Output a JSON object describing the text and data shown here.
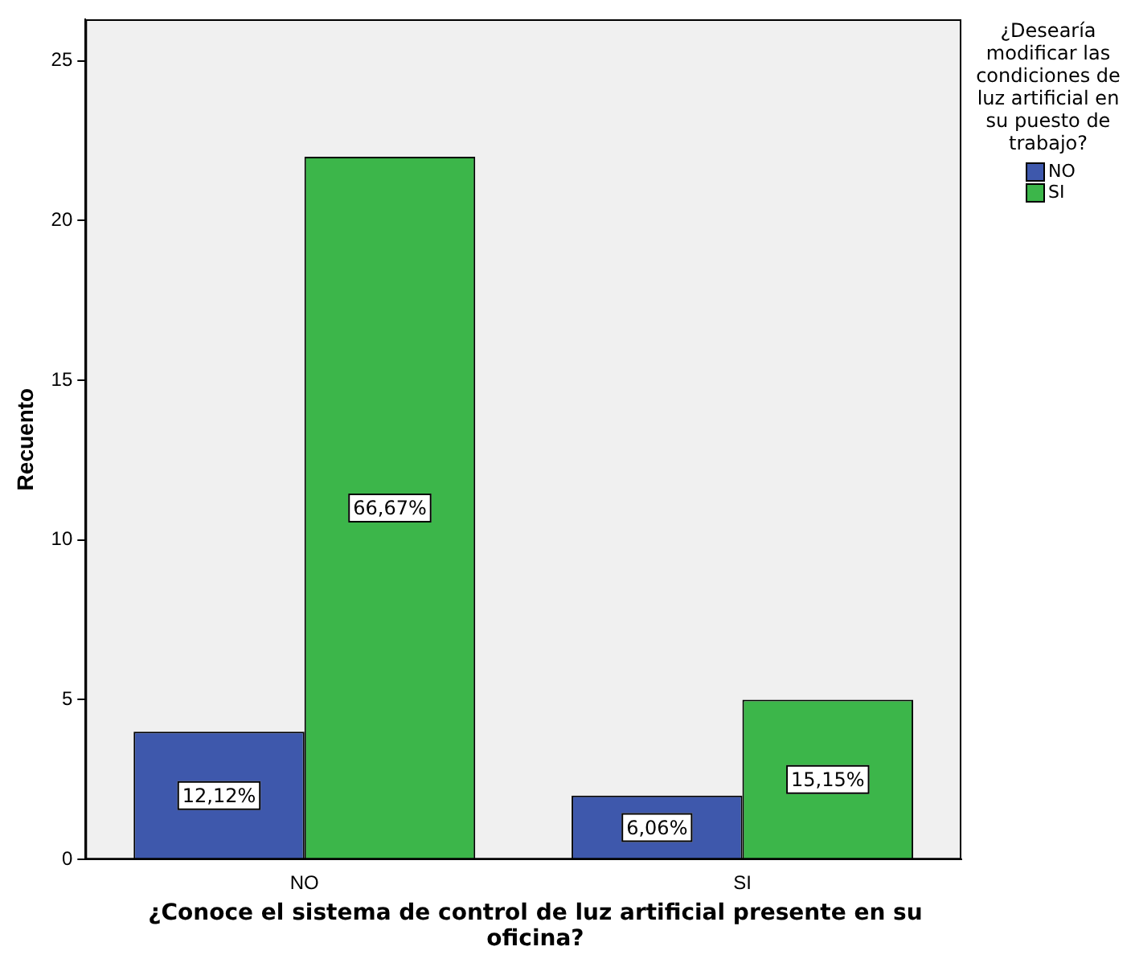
{
  "chart_data": {
    "type": "bar",
    "xlabel": "¿Conoce el sistema de control de luz artificial presente en su oficina?",
    "ylabel": "Recuento",
    "legend_title": "¿Desearía modificar las condiciones de luz artificial en su puesto de trabajo?",
    "categories": [
      "NO",
      "SI"
    ],
    "series": [
      {
        "name": "NO",
        "color": "#3e58ac",
        "values": [
          4,
          2
        ]
      },
      {
        "name": "SI",
        "color": "#3cb64a",
        "values": [
          22,
          5
        ]
      }
    ],
    "annotations": [
      {
        "text": "12,12%",
        "x": "NO",
        "y": 2
      },
      {
        "text": "66,67%",
        "x": "NO",
        "y": 11
      },
      {
        "text": "6,06%",
        "x": "SI",
        "y": 1
      },
      {
        "text": "15,15%",
        "x": "SI",
        "y": 2.5
      }
    ],
    "ylim": [
      0,
      26.3
    ],
    "yticks": [
      0,
      5,
      10,
      15,
      20,
      25
    ],
    "grid": false,
    "legend": "top right"
  }
}
